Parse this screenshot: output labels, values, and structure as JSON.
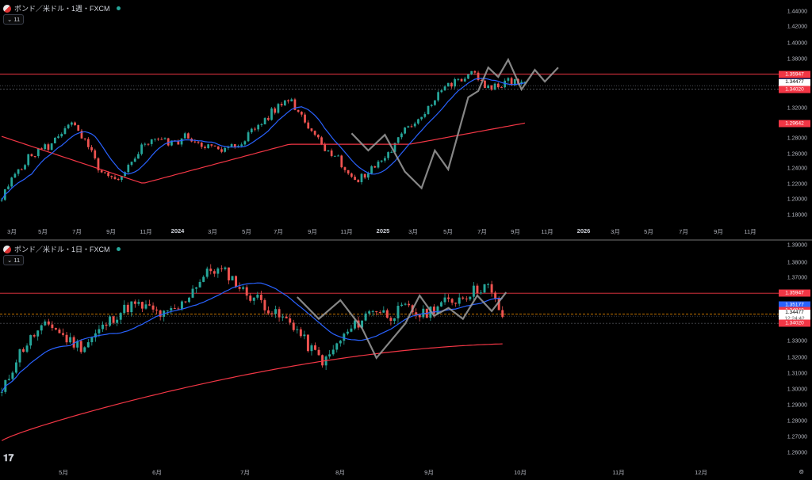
{
  "top": {
    "title": "ポンド／米ドル・1週・FXCM",
    "indicator_count": "11",
    "yticks": [
      "1.44000",
      "1.42000",
      "1.40000",
      "1.38000",
      "1.36000",
      "1.32000",
      "1.30000",
      "1.28000",
      "1.26000",
      "1.24000",
      "1.22000",
      "1.20000",
      "1.18000"
    ],
    "xticks": [
      "3月",
      "5月",
      "7月",
      "9月",
      "11月",
      "2024",
      "3月",
      "5月",
      "7月",
      "9月",
      "11月",
      "2025",
      "3月",
      "5月",
      "7月",
      "9月",
      "11月",
      "2026",
      "3月",
      "5月",
      "7月",
      "9月",
      "11月"
    ],
    "bold_xticks": [
      "2024",
      "2025",
      "2026"
    ],
    "price_tags": [
      {
        "text": "1.35947",
        "color": "#f23645",
        "price": 1.35947
      },
      {
        "text": "1.34867",
        "color": "#2962ff",
        "price": 1.34867
      },
      {
        "text": "1.34477",
        "sub": "1d 13h",
        "color": "#ffffff",
        "price": 1.34477
      },
      {
        "text": "1.34020",
        "color": "#f23645",
        "price": 1.3402
      },
      {
        "text": "1.29642",
        "color": "#f23645",
        "price": 1.29642
      }
    ]
  },
  "bottom": {
    "title": "ポンド／米ドル・1日・FXCM",
    "indicator_count": "11",
    "yticks": [
      "1.39000",
      "1.38000",
      "1.37000",
      "1.33000",
      "1.32000",
      "1.31000",
      "1.30000",
      "1.29000",
      "1.28000",
      "1.27000",
      "1.26000"
    ],
    "xticks": [
      "5月",
      "6月",
      "7月",
      "8月",
      "9月",
      "10月",
      "11月",
      "12月"
    ],
    "bold_xticks": [],
    "price_tags": [
      {
        "text": "1.35947",
        "color": "#f23645",
        "price": 1.35947
      },
      {
        "text": "1.35177",
        "color": "#2962ff",
        "price": 1.35177
      },
      {
        "text": "1.34848",
        "color": "#f23645",
        "price": 1.34848
      },
      {
        "text": "1.34605",
        "color": "#ff9800",
        "price": 1.34605
      },
      {
        "text": "1.34477",
        "sub": "12:24:42",
        "color": "#ffffff",
        "price": 1.34477
      },
      {
        "text": "1.34020",
        "color": "#f23645",
        "price": 1.3402
      }
    ]
  },
  "colors": {
    "up": "#26a69a",
    "down": "#ef5350",
    "ma_fast": "#2962ff",
    "ma_slow": "#f23645",
    "zigzag": "#9e9e9e",
    "hline": "#f23645"
  }
}
